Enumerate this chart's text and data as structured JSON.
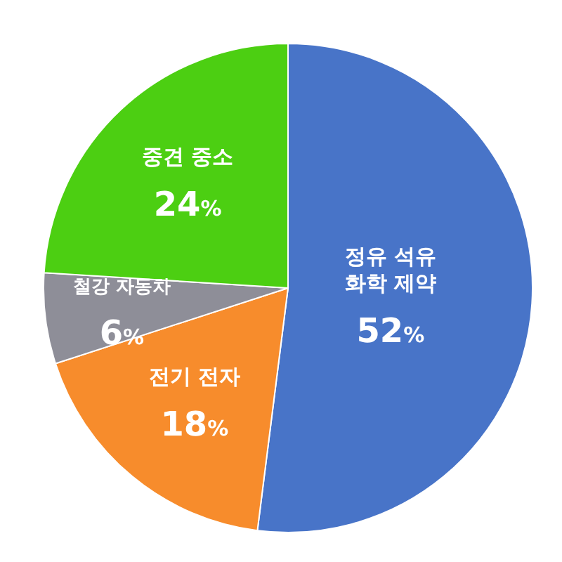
{
  "chart_data": {
    "type": "pie",
    "categories": [
      "정유 석유 화학 제약",
      "전기 전자",
      "철강 자동차",
      "중견 중소"
    ],
    "values": [
      52,
      18,
      6,
      24
    ],
    "colors": [
      "#4874c8",
      "#f78c2c",
      "#8e8e98",
      "#4ccf12"
    ],
    "value_labels": [
      "52%",
      "18%",
      "6%",
      "24%"
    ],
    "legend": false
  }
}
